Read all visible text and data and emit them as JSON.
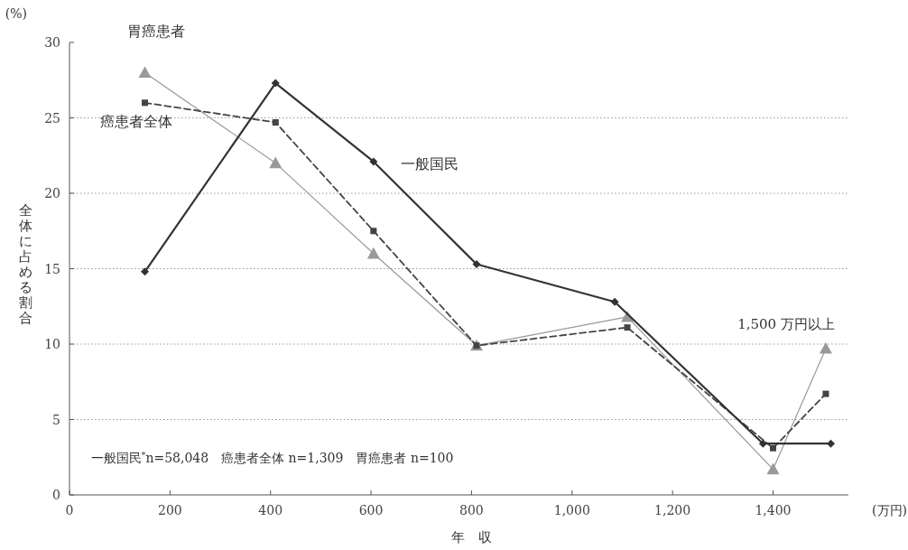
{
  "chart_data": {
    "type": "line",
    "xlabel": "年　収",
    "ylabel": "全体に占める割合",
    "xlim": [
      0,
      1550
    ],
    "xticks": [
      0,
      200,
      400,
      600,
      800,
      {
        "value": 1000,
        "label": "1,000"
      },
      {
        "value": 1200,
        "label": "1,200"
      },
      {
        "value": 1400,
        "label": "1,400"
      }
    ],
    "ylim": [
      0,
      30
    ],
    "yticks": [
      0,
      5,
      10,
      15,
      20,
      25,
      30
    ],
    "grid": "y",
    "series": [
      {
        "name": "一般国民",
        "color": "#333333",
        "marker": "diamond",
        "line_style": "solid",
        "x": [
          150,
          410,
          605,
          810,
          1085,
          1380,
          1515
        ],
        "values": [
          14.8,
          27.3,
          22.1,
          15.3,
          12.8,
          3.4,
          3.4
        ]
      },
      {
        "name": "癌患者全体",
        "color": "#444444",
        "marker": "square",
        "line_style": "dashed",
        "x": [
          150,
          410,
          605,
          810,
          1110,
          1400,
          1505
        ],
        "values": [
          26,
          24.7,
          17.5,
          9.9,
          11.1,
          3.1,
          6.7
        ]
      },
      {
        "name": "胃癌患者",
        "color": "#999999",
        "marker": "triangle",
        "line_style": "solid",
        "x": [
          150,
          410,
          605,
          810,
          1110,
          1400,
          1505
        ],
        "values": [
          28,
          22,
          16,
          9.9,
          11.8,
          1.7,
          9.7
        ]
      }
    ],
    "annotations": [
      "(%)",
      "(万円)",
      "一般国民$^{*}$n=58,048　癌患者全体 n=1,309　胃癌患者 n=100",
      {
        "text": "1,500 万円以上",
        "x": 1505,
        "y": 9.7
      }
    ]
  }
}
